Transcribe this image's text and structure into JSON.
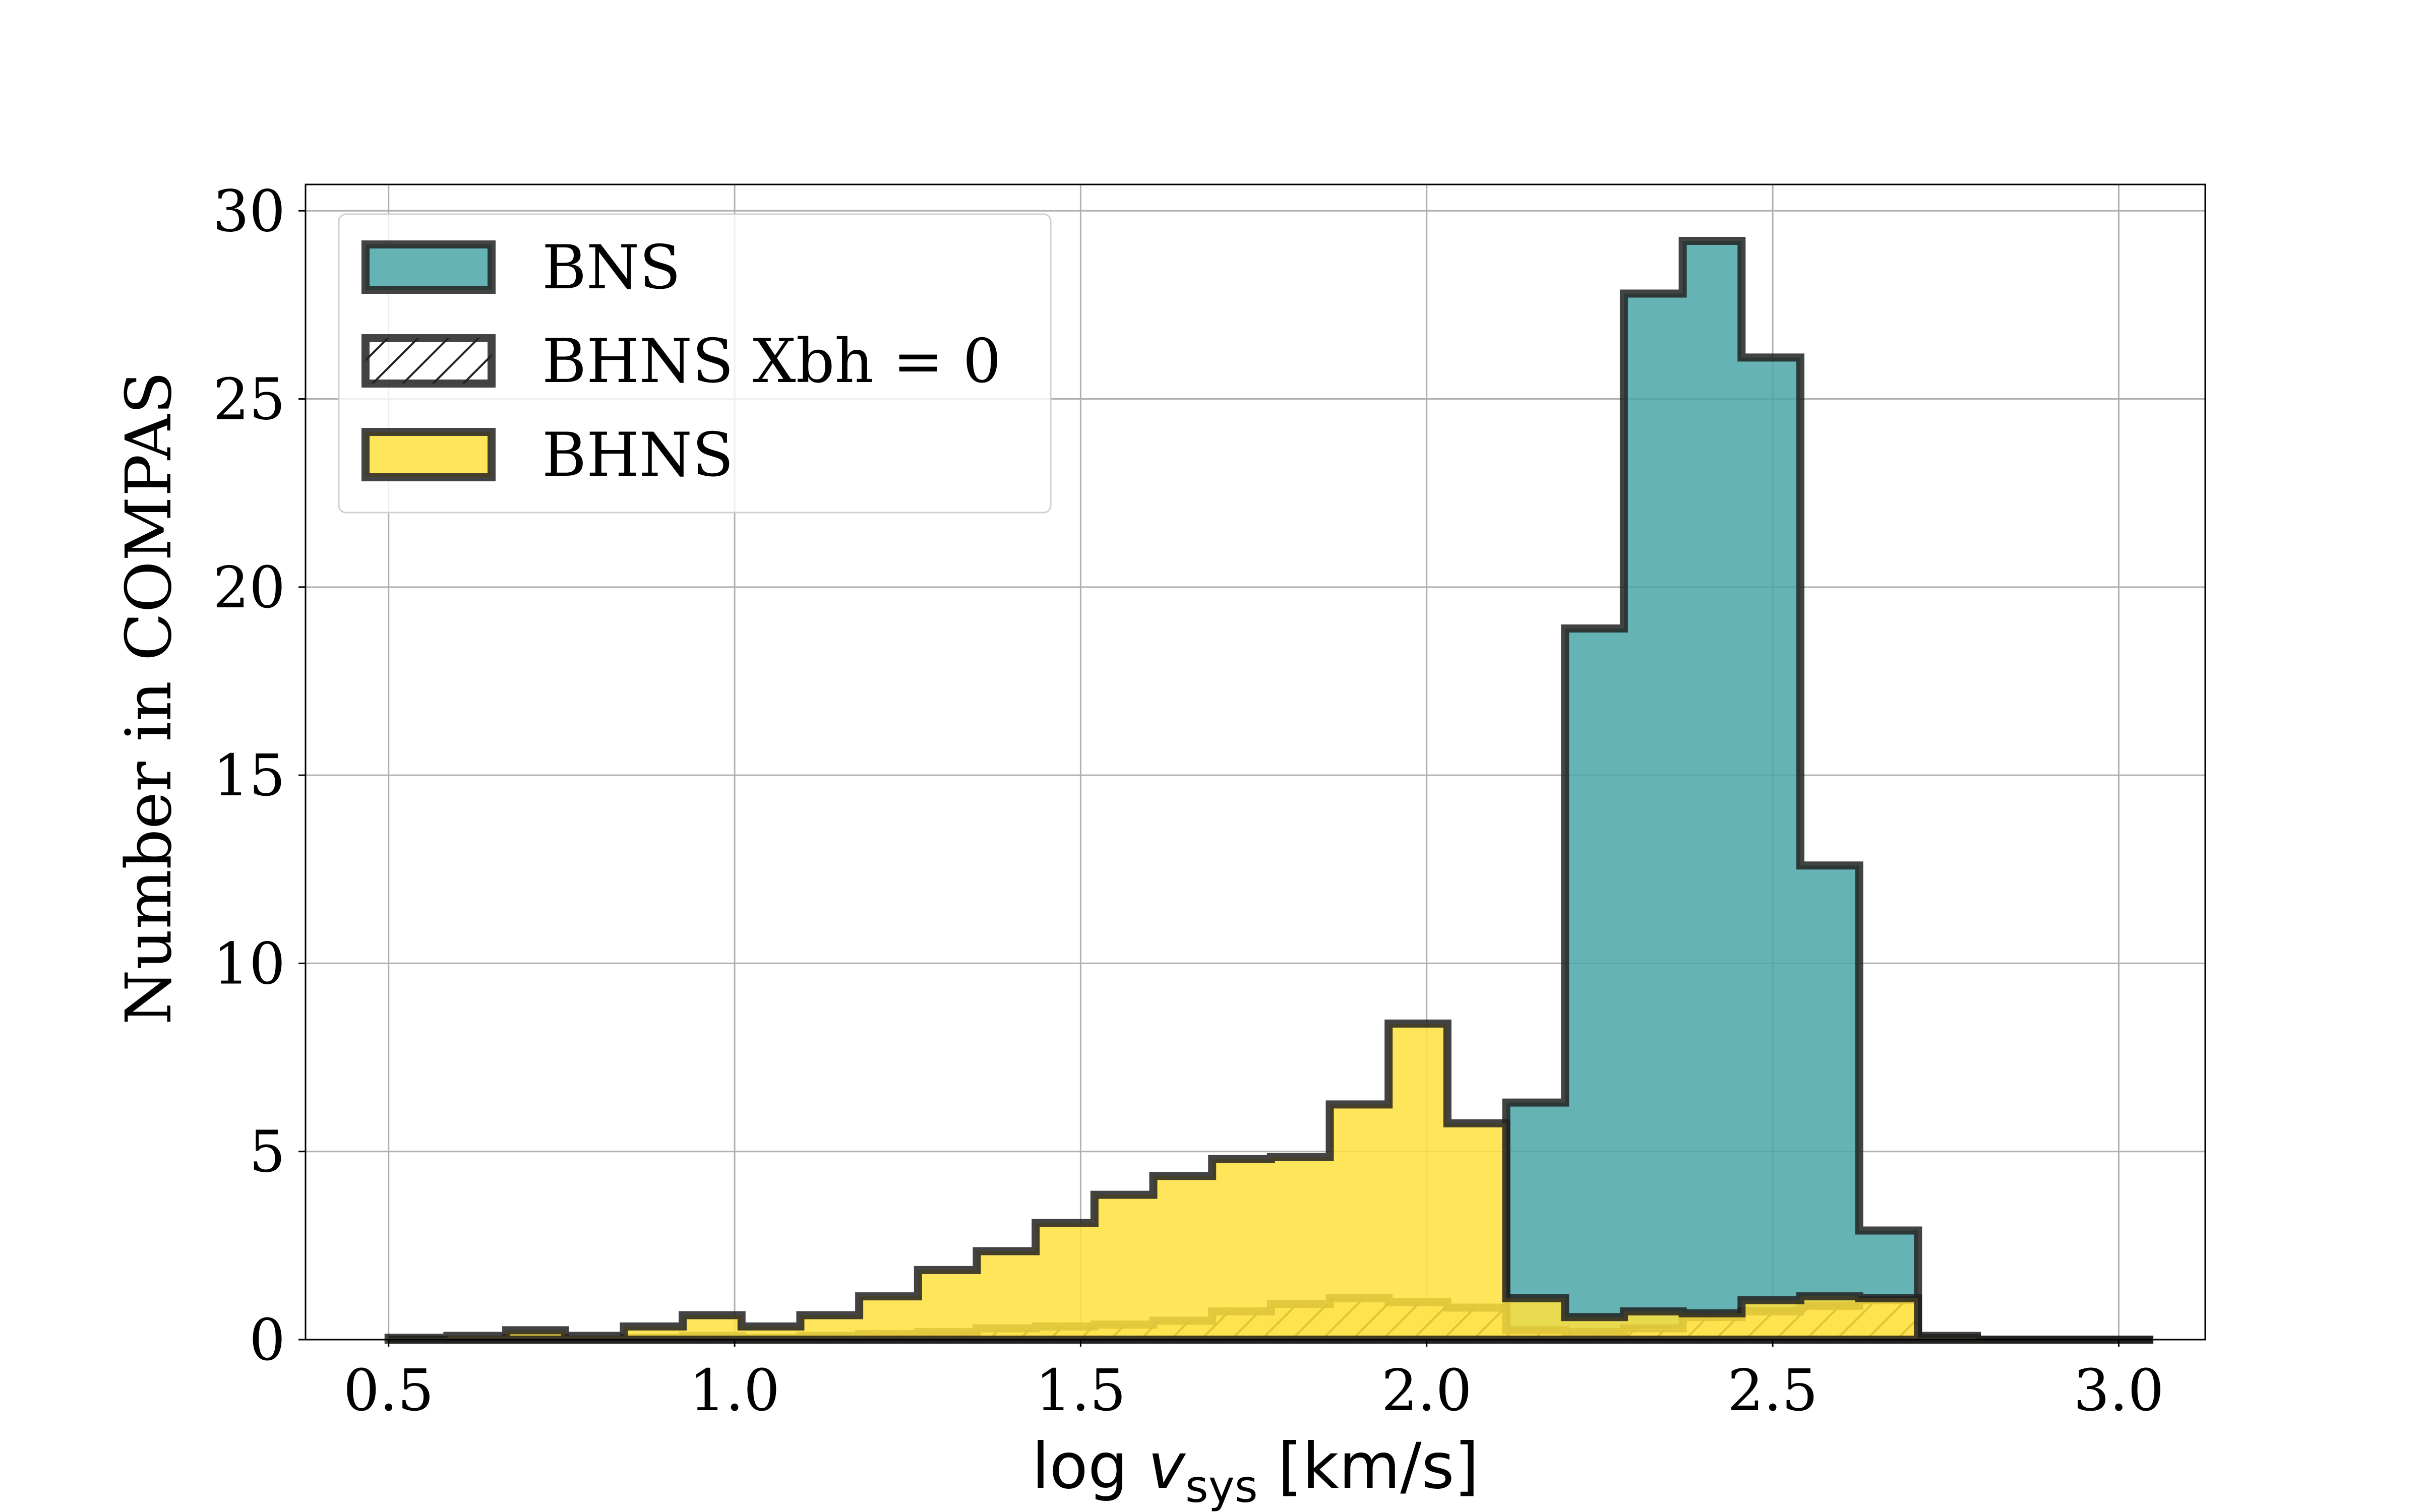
{
  "chart_data": {
    "type": "histogram",
    "xlabel": {
      "prefix": "log ",
      "var": "v",
      "sub": "sys",
      "suffix": " [km/s]"
    },
    "ylabel": "Number in COMPAS",
    "xlim": [
      0.38,
      3.125
    ],
    "ylim": [
      0,
      30.7
    ],
    "xticks": [
      0.5,
      1.0,
      1.5,
      2.0,
      2.5,
      3.0
    ],
    "xtick_labels": [
      "0.5",
      "1.0",
      "1.5",
      "2.0",
      "2.5",
      "3.0"
    ],
    "yticks": [
      0,
      5,
      10,
      15,
      20,
      25,
      30
    ],
    "ytick_labels": [
      "0",
      "5",
      "10",
      "15",
      "20",
      "25",
      "30"
    ],
    "grid": true,
    "legend_position": "top-left",
    "bin_edges": [
      0.5,
      0.585,
      0.67,
      0.755,
      0.84,
      0.925,
      1.01,
      1.095,
      1.18,
      1.265,
      1.35,
      1.435,
      1.52,
      1.605,
      1.69,
      1.775,
      1.86,
      1.945,
      2.03,
      2.115,
      2.2,
      2.285,
      2.37,
      2.455,
      2.54,
      2.625,
      2.71,
      2.795,
      2.88,
      2.965,
      3.05
    ],
    "series": [
      {
        "name": "BNS",
        "style": "filled",
        "fill": "#4BA6A8",
        "values": [
          0,
          0,
          0,
          0,
          0,
          0,
          0,
          0,
          0,
          0,
          0,
          0,
          0,
          0,
          0,
          0,
          0,
          0,
          0.2,
          6.3,
          18.9,
          27.8,
          29.2,
          26.1,
          12.6,
          2.9,
          0.1,
          0,
          0,
          0
        ]
      },
      {
        "name": "BHNS Xbh = 0",
        "style": "hatched",
        "fill": "#F5F0BE",
        "values": [
          0,
          0,
          0.05,
          0,
          0.05,
          0.1,
          0.05,
          0.1,
          0.15,
          0.2,
          0.3,
          0.35,
          0.4,
          0.5,
          0.75,
          0.95,
          1.1,
          1.0,
          0.85,
          0.25,
          0.2,
          0.3,
          0.6,
          0.75,
          0.9,
          1.05,
          0,
          0,
          0,
          0
        ]
      },
      {
        "name": "BHNS",
        "style": "filled",
        "fill": "#FFE03C",
        "values": [
          0.05,
          0.1,
          0.25,
          0.1,
          0.35,
          0.65,
          0.35,
          0.65,
          1.15,
          1.85,
          2.35,
          3.1,
          3.85,
          4.35,
          4.8,
          4.85,
          6.25,
          8.4,
          5.75,
          1.1,
          0.6,
          0.75,
          0.7,
          1.05,
          1.15,
          1.1,
          0.05,
          0,
          0,
          0
        ]
      }
    ]
  }
}
